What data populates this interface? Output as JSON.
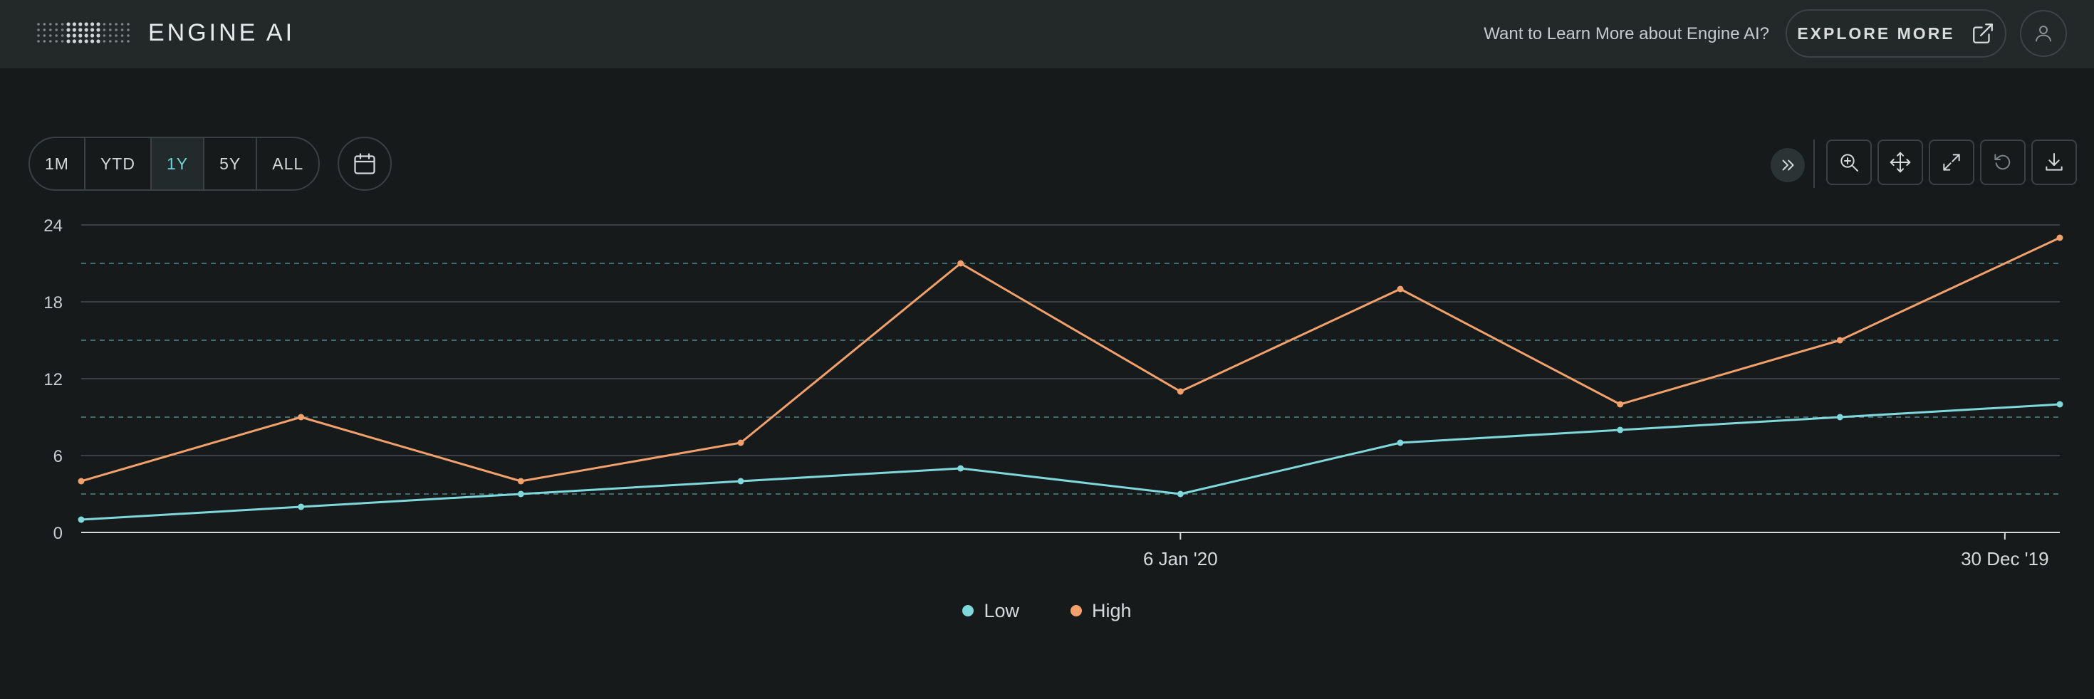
{
  "header": {
    "logo_text": "ENGINE AI",
    "learn_text": "Want to Learn More about Engine AI?",
    "explore_label": "EXPLORE MORE"
  },
  "toolbar": {
    "ranges": [
      {
        "label": "1M",
        "active": false
      },
      {
        "label": "YTD",
        "active": false
      },
      {
        "label": "1Y",
        "active": true
      },
      {
        "label": "5Y",
        "active": false
      },
      {
        "label": "ALL",
        "active": false
      }
    ],
    "tools": [
      "zoom-in-icon",
      "pan-icon",
      "fit-screen-icon",
      "reset-icon",
      "download-icon"
    ]
  },
  "colors": {
    "low": "#7fd8dc",
    "high": "#f2a06c",
    "accent": "#6fd3d7",
    "grid": "#3c4244",
    "dashed": "#4f8a8d",
    "axis": "#d8dcdd"
  },
  "chart_data": {
    "type": "line",
    "ylim": [
      0,
      24
    ],
    "yticks": [
      0,
      6,
      12,
      18,
      24
    ],
    "dashed_levels": [
      3,
      9,
      15,
      21
    ],
    "x_labels": [
      {
        "label": "6 Jan '20",
        "index": 5
      },
      {
        "label": "30 Dec '19",
        "index": 8.75
      }
    ],
    "series": [
      {
        "name": "Low",
        "values": [
          1,
          2,
          3,
          4,
          5,
          3,
          7,
          8,
          9,
          10
        ]
      },
      {
        "name": "High",
        "values": [
          4,
          9,
          4,
          7,
          21,
          11,
          19,
          10,
          15,
          23
        ]
      }
    ],
    "legend_position": "bottom"
  }
}
